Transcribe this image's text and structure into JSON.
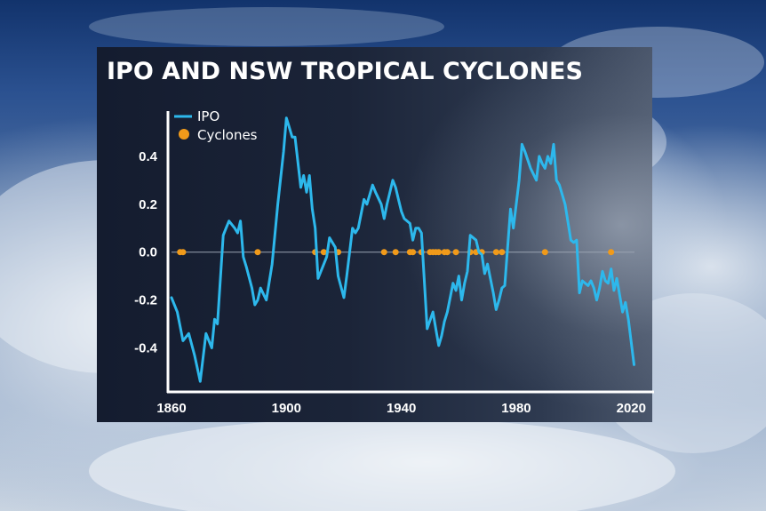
{
  "colors": {
    "ipo_line": "#2db8ec",
    "cyclone_dot": "#f09a1a",
    "axis": "#ffffff",
    "zero_line": "#9aa3b2"
  },
  "chart_data": {
    "type": "line",
    "title": "IPO AND NSW TROPICAL CYCLONES",
    "xlabel": "",
    "ylabel": "",
    "xlim": [
      1860,
      2023
    ],
    "ylim": [
      -0.58,
      0.6
    ],
    "x_ticks": [
      1860,
      1900,
      1940,
      1980,
      2020
    ],
    "x_tick_labels": [
      "1860",
      "1900",
      "1940",
      "1980",
      "2020"
    ],
    "y_ticks": [
      0.4,
      0.2,
      0.0,
      -0.2,
      -0.4
    ],
    "y_tick_labels": [
      "0.4",
      "0.2",
      "0.0",
      "-0.2",
      "-0.4"
    ],
    "legend": {
      "placement": "top-left",
      "entries": [
        "IPO",
        "Cyclones"
      ]
    },
    "series": [
      {
        "name": "IPO",
        "kind": "line",
        "x": [
          1860,
          1862,
          1864,
          1866,
          1868,
          1870,
          1872,
          1874,
          1875,
          1876,
          1878,
          1879,
          1880,
          1882,
          1883,
          1884,
          1885,
          1886,
          1888,
          1889,
          1890,
          1891,
          1893,
          1895,
          1897,
          1899,
          1900,
          1901,
          1902,
          1903,
          1905,
          1906,
          1907,
          1908,
          1909,
          1910,
          1911,
          1913,
          1914,
          1915,
          1917,
          1918,
          1920,
          1921,
          1923,
          1924,
          1925,
          1927,
          1928,
          1930,
          1931,
          1933,
          1934,
          1935,
          1937,
          1938,
          1939,
          1940,
          1941,
          1943,
          1944,
          1945,
          1946,
          1947,
          1949,
          1951,
          1952,
          1953,
          1954,
          1955,
          1956,
          1958,
          1959,
          1960,
          1961,
          1962,
          1963,
          1964,
          1966,
          1967,
          1968,
          1969,
          1970,
          1972,
          1973,
          1974,
          1975,
          1976,
          1978,
          1979,
          1981,
          1982,
          1983,
          1985,
          1987,
          1988,
          1989,
          1990,
          1991,
          1992,
          1993,
          1994,
          1995,
          1997,
          1999,
          2000,
          2001,
          2002,
          2003,
          2005,
          2006,
          2007,
          2008,
          2009,
          2010,
          2011,
          2012,
          2013,
          2014,
          2015,
          2017,
          2018,
          2019,
          2021
        ],
        "y": [
          -0.19,
          -0.25,
          -0.37,
          -0.34,
          -0.43,
          -0.54,
          -0.34,
          -0.4,
          -0.28,
          -0.3,
          0.07,
          0.1,
          0.13,
          0.1,
          0.08,
          0.13,
          -0.02,
          -0.06,
          -0.15,
          -0.22,
          -0.2,
          -0.15,
          -0.2,
          -0.05,
          0.2,
          0.42,
          0.56,
          0.52,
          0.48,
          0.48,
          0.27,
          0.32,
          0.25,
          0.32,
          0.18,
          0.1,
          -0.11,
          -0.05,
          -0.02,
          0.06,
          0.02,
          -0.1,
          -0.19,
          -0.1,
          0.1,
          0.08,
          0.1,
          0.22,
          0.2,
          0.28,
          0.25,
          0.2,
          0.14,
          0.2,
          0.3,
          0.27,
          0.22,
          0.17,
          0.14,
          0.12,
          0.05,
          0.1,
          0.1,
          0.08,
          -0.32,
          -0.25,
          -0.32,
          -0.39,
          -0.35,
          -0.29,
          -0.25,
          -0.13,
          -0.16,
          -0.1,
          -0.2,
          -0.13,
          -0.08,
          0.07,
          0.05,
          0.0,
          -0.01,
          -0.09,
          -0.05,
          -0.17,
          -0.24,
          -0.2,
          -0.15,
          -0.14,
          0.18,
          0.1,
          0.3,
          0.45,
          0.42,
          0.35,
          0.3,
          0.4,
          0.37,
          0.35,
          0.4,
          0.37,
          0.45,
          0.3,
          0.28,
          0.2,
          0.05,
          0.04,
          0.05,
          -0.17,
          -0.12,
          -0.14,
          -0.12,
          -0.15,
          -0.2,
          -0.15,
          -0.08,
          -0.12,
          -0.13,
          -0.07,
          -0.16,
          -0.11,
          -0.25,
          -0.21,
          -0.28,
          -0.47
        ]
      },
      {
        "name": "Cyclones",
        "kind": "points",
        "x": [
          1863,
          1864,
          1890,
          1910,
          1913,
          1918,
          1934,
          1938,
          1943,
          1944,
          1947,
          1950,
          1951,
          1952,
          1953,
          1955,
          1956,
          1959,
          1964,
          1966,
          1968,
          1973,
          1975,
          1990,
          2013
        ],
        "y": [
          0,
          0,
          0,
          0,
          0,
          0,
          0,
          0,
          0,
          0,
          0,
          0,
          0,
          0,
          0,
          0,
          0,
          0,
          0,
          0,
          0,
          0,
          0,
          0,
          0
        ]
      }
    ]
  }
}
